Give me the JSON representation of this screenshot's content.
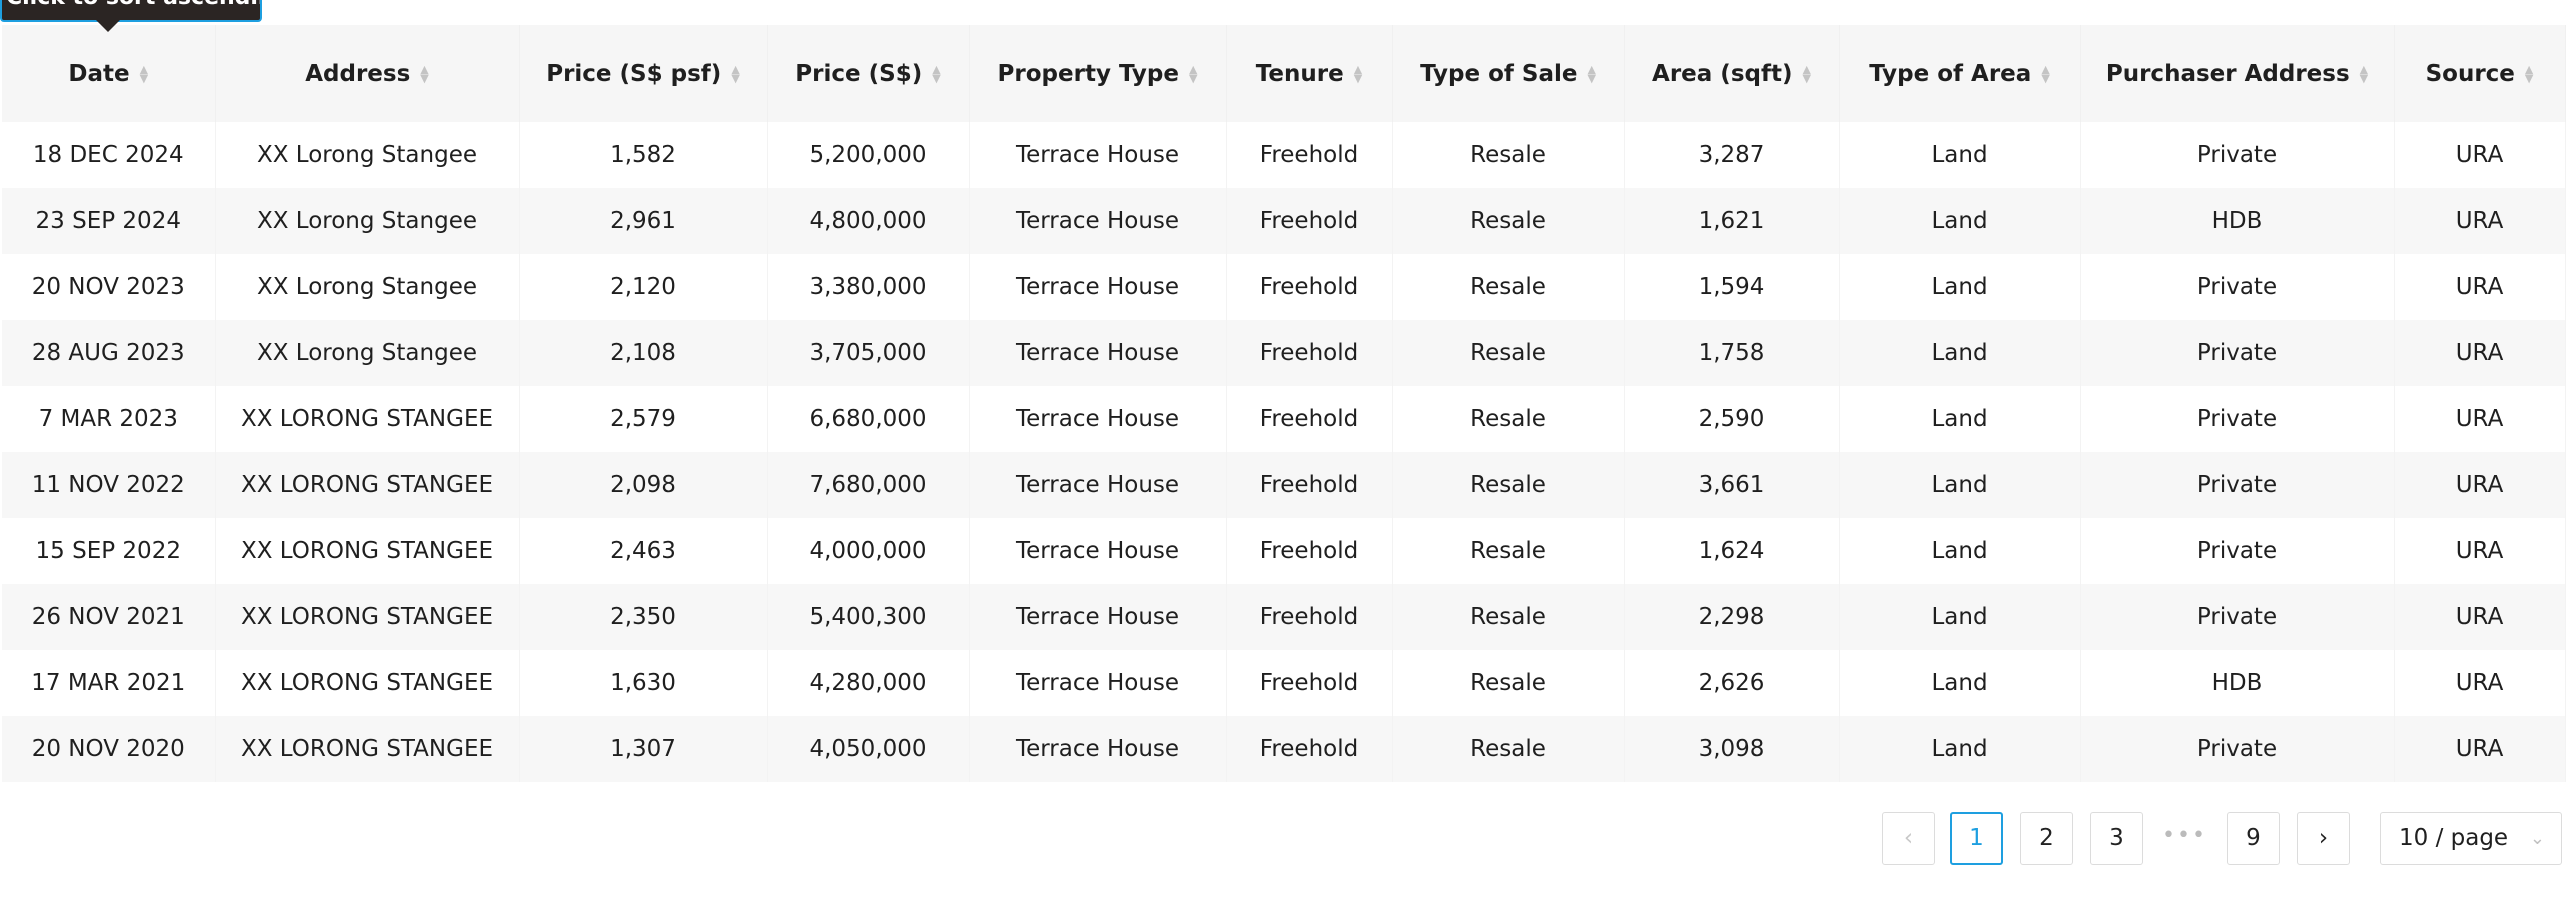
{
  "tooltip": "Click to sort ascending",
  "columns": [
    "Date",
    "Address",
    "Price (S$ psf)",
    "Price (S$)",
    "Property Type",
    "Tenure",
    "Type of Sale",
    "Area (sqft)",
    "Type of Area",
    "Purchaser Address",
    "Source"
  ],
  "rows": [
    [
      "18 DEC 2024",
      "XX Lorong Stangee",
      "1,582",
      "5,200,000",
      "Terrace House",
      "Freehold",
      "Resale",
      "3,287",
      "Land",
      "Private",
      "URA"
    ],
    [
      "23 SEP 2024",
      "XX Lorong Stangee",
      "2,961",
      "4,800,000",
      "Terrace House",
      "Freehold",
      "Resale",
      "1,621",
      "Land",
      "HDB",
      "URA"
    ],
    [
      "20 NOV 2023",
      "XX Lorong Stangee",
      "2,120",
      "3,380,000",
      "Terrace House",
      "Freehold",
      "Resale",
      "1,594",
      "Land",
      "Private",
      "URA"
    ],
    [
      "28 AUG 2023",
      "XX Lorong Stangee",
      "2,108",
      "3,705,000",
      "Terrace House",
      "Freehold",
      "Resale",
      "1,758",
      "Land",
      "Private",
      "URA"
    ],
    [
      "7 MAR 2023",
      "XX LORONG STANGEE",
      "2,579",
      "6,680,000",
      "Terrace House",
      "Freehold",
      "Resale",
      "2,590",
      "Land",
      "Private",
      "URA"
    ],
    [
      "11 NOV 2022",
      "XX LORONG STANGEE",
      "2,098",
      "7,680,000",
      "Terrace House",
      "Freehold",
      "Resale",
      "3,661",
      "Land",
      "Private",
      "URA"
    ],
    [
      "15 SEP 2022",
      "XX LORONG STANGEE",
      "2,463",
      "4,000,000",
      "Terrace House",
      "Freehold",
      "Resale",
      "1,624",
      "Land",
      "Private",
      "URA"
    ],
    [
      "26 NOV 2021",
      "XX LORONG STANGEE",
      "2,350",
      "5,400,300",
      "Terrace House",
      "Freehold",
      "Resale",
      "2,298",
      "Land",
      "Private",
      "URA"
    ],
    [
      "17 MAR 2021",
      "XX LORONG STANGEE",
      "1,630",
      "4,280,000",
      "Terrace House",
      "Freehold",
      "Resale",
      "2,626",
      "Land",
      "HDB",
      "URA"
    ],
    [
      "20 NOV 2020",
      "XX LORONG STANGEE",
      "1,307",
      "4,050,000",
      "Terrace House",
      "Freehold",
      "Resale",
      "3,098",
      "Land",
      "Private",
      "URA"
    ]
  ],
  "pagination": {
    "prev_icon": "chevron-left-icon",
    "pages": [
      "1",
      "2",
      "3"
    ],
    "ellipsis": "•••",
    "last_page": "9",
    "current_page": "1",
    "next_icon": "chevron-right-icon",
    "page_size": "10 / page"
  },
  "colors": {
    "accent": "#1e9fe0",
    "tooltip_bg": "#2b2523",
    "header_bg": "#f6f6f6"
  }
}
